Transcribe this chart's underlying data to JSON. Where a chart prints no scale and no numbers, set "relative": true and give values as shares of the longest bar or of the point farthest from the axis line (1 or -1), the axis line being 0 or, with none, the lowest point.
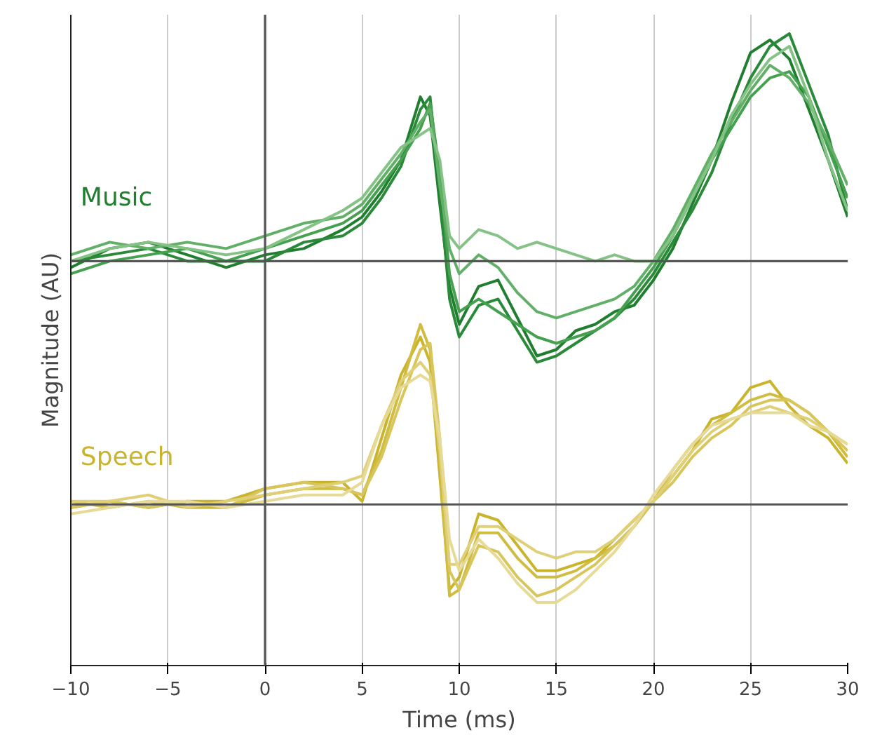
{
  "chart_data": {
    "type": "line",
    "relative": true,
    "xlabel": "Time (ms)",
    "ylabel": "Magnitude (AU)",
    "x": [
      -10,
      -8,
      -6,
      -4,
      -2,
      0,
      2,
      4,
      5,
      6,
      7,
      8,
      8.5,
      9,
      9.5,
      10,
      11,
      12,
      13,
      14,
      15,
      16,
      17,
      18,
      19,
      20,
      21,
      22,
      23,
      24,
      25,
      26,
      27,
      28,
      29,
      30
    ],
    "xlim": [
      -10,
      30
    ],
    "xticks": [
      -10,
      -5,
      0,
      5,
      10,
      15,
      20,
      25,
      30
    ],
    "grid": "x",
    "line_style": "solid",
    "marker": "none",
    "ref_lines": [
      {
        "axis": "y",
        "value": 0.64,
        "color": "#555555"
      },
      {
        "axis": "y",
        "value": 0.255,
        "color": "#555555"
      },
      {
        "axis": "x",
        "value": 0,
        "color": "#555555"
      }
    ],
    "series": [
      {
        "name": "Music",
        "color": "#1f7f2f",
        "values": [
          0.63,
          0.66,
          0.67,
          0.65,
          0.63,
          0.65,
          0.66,
          0.69,
          0.71,
          0.75,
          0.8,
          0.9,
          0.87,
          0.73,
          0.6,
          0.54,
          0.6,
          0.61,
          0.55,
          0.49,
          0.5,
          0.53,
          0.54,
          0.56,
          0.57,
          0.61,
          0.66,
          0.73,
          0.8,
          0.89,
          0.97,
          0.99,
          0.96,
          0.88,
          0.8,
          0.71
        ]
      },
      {
        "color": "#2a8a3a",
        "values": [
          0.64,
          0.65,
          0.66,
          0.64,
          0.64,
          0.64,
          0.67,
          0.68,
          0.7,
          0.74,
          0.79,
          0.88,
          0.9,
          0.75,
          0.58,
          0.52,
          0.57,
          0.58,
          0.53,
          0.48,
          0.49,
          0.51,
          0.53,
          0.55,
          0.58,
          0.62,
          0.67,
          0.72,
          0.78,
          0.86,
          0.93,
          0.98,
          1.0,
          0.92,
          0.84,
          0.72
        ]
      },
      {
        "color": "#45a04f",
        "values": [
          0.62,
          0.64,
          0.65,
          0.66,
          0.64,
          0.66,
          0.68,
          0.7,
          0.72,
          0.76,
          0.8,
          0.85,
          0.89,
          0.78,
          0.62,
          0.56,
          0.58,
          0.56,
          0.54,
          0.52,
          0.51,
          0.52,
          0.53,
          0.55,
          0.59,
          0.63,
          0.68,
          0.74,
          0.8,
          0.85,
          0.9,
          0.93,
          0.94,
          0.9,
          0.82,
          0.74
        ]
      },
      {
        "color": "#62b068",
        "values": [
          0.65,
          0.67,
          0.66,
          0.67,
          0.66,
          0.68,
          0.7,
          0.71,
          0.73,
          0.77,
          0.81,
          0.86,
          0.88,
          0.76,
          0.66,
          0.62,
          0.65,
          0.63,
          0.59,
          0.56,
          0.55,
          0.56,
          0.57,
          0.58,
          0.6,
          0.64,
          0.69,
          0.75,
          0.81,
          0.86,
          0.91,
          0.95,
          0.93,
          0.89,
          0.83,
          0.76
        ]
      },
      {
        "color": "#85c285",
        "values": [
          0.64,
          0.66,
          0.67,
          0.66,
          0.65,
          0.66,
          0.69,
          0.72,
          0.74,
          0.78,
          0.82,
          0.84,
          0.85,
          0.8,
          0.68,
          0.66,
          0.69,
          0.68,
          0.66,
          0.67,
          0.66,
          0.65,
          0.64,
          0.65,
          0.64,
          0.64,
          0.68,
          0.74,
          0.8,
          0.87,
          0.92,
          0.96,
          0.98,
          0.9,
          0.8,
          0.72
        ]
      },
      {
        "name": "Speech",
        "color": "#c9b42c",
        "values": [
          0.25,
          0.26,
          0.25,
          0.26,
          0.26,
          0.28,
          0.29,
          0.29,
          0.26,
          0.36,
          0.46,
          0.52,
          0.48,
          0.3,
          0.12,
          0.14,
          0.24,
          0.23,
          0.19,
          0.15,
          0.15,
          0.16,
          0.17,
          0.2,
          0.23,
          0.26,
          0.3,
          0.34,
          0.39,
          0.4,
          0.44,
          0.45,
          0.41,
          0.38,
          0.36,
          0.32
        ]
      },
      {
        "color": "#d0bc40",
        "values": [
          0.26,
          0.25,
          0.26,
          0.25,
          0.25,
          0.27,
          0.28,
          0.28,
          0.27,
          0.34,
          0.44,
          0.54,
          0.5,
          0.32,
          0.11,
          0.12,
          0.21,
          0.21,
          0.17,
          0.14,
          0.14,
          0.15,
          0.17,
          0.19,
          0.22,
          0.26,
          0.31,
          0.35,
          0.38,
          0.4,
          0.42,
          0.43,
          0.42,
          0.4,
          0.37,
          0.33
        ]
      },
      {
        "color": "#d8c65c",
        "values": [
          0.25,
          0.26,
          0.25,
          0.26,
          0.25,
          0.28,
          0.29,
          0.28,
          0.27,
          0.33,
          0.42,
          0.5,
          0.51,
          0.36,
          0.15,
          0.12,
          0.19,
          0.18,
          0.14,
          0.11,
          0.12,
          0.14,
          0.16,
          0.19,
          0.22,
          0.26,
          0.29,
          0.33,
          0.36,
          0.38,
          0.41,
          0.42,
          0.42,
          0.4,
          0.37,
          0.34
        ]
      },
      {
        "color": "#dfd078",
        "values": [
          0.26,
          0.26,
          0.27,
          0.25,
          0.26,
          0.27,
          0.28,
          0.29,
          0.3,
          0.38,
          0.45,
          0.48,
          0.46,
          0.34,
          0.16,
          0.16,
          0.22,
          0.22,
          0.2,
          0.18,
          0.17,
          0.18,
          0.18,
          0.2,
          0.23,
          0.26,
          0.3,
          0.34,
          0.37,
          0.39,
          0.4,
          0.41,
          0.4,
          0.39,
          0.37,
          0.35
        ]
      },
      {
        "color": "#e6da96",
        "values": [
          0.24,
          0.25,
          0.26,
          0.26,
          0.25,
          0.26,
          0.27,
          0.27,
          0.29,
          0.38,
          0.44,
          0.46,
          0.45,
          0.36,
          0.2,
          0.15,
          0.2,
          0.17,
          0.13,
          0.1,
          0.1,
          0.12,
          0.15,
          0.18,
          0.22,
          0.27,
          0.31,
          0.35,
          0.38,
          0.39,
          0.4,
          0.4,
          0.4,
          0.38,
          0.37,
          0.35
        ]
      }
    ]
  }
}
